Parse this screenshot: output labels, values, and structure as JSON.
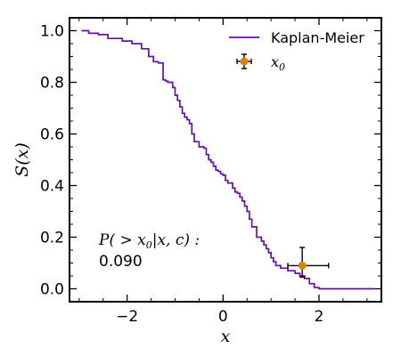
{
  "chart_data": {
    "type": "line",
    "xlabel": "x",
    "ylabel": "S(x)",
    "xlim": [
      -3.2,
      3.3
    ],
    "ylim": [
      -0.05,
      1.05
    ],
    "x_ticks": [
      -2,
      0,
      2
    ],
    "x_tick_labels": [
      "−2",
      "0",
      "2"
    ],
    "y_ticks": [
      0.0,
      0.2,
      0.4,
      0.6,
      0.8,
      1.0
    ],
    "y_tick_labels": [
      "0.0",
      "0.2",
      "0.4",
      "0.6",
      "0.8",
      "1.0"
    ],
    "grid": false,
    "legend_position": "top-right",
    "series": [
      {
        "name": "Kaplan-Meier",
        "kind": "step",
        "color": "#6a0dad",
        "x": [
          -2.95,
          -2.8,
          -2.6,
          -2.4,
          -2.1,
          -1.9,
          -1.7,
          -1.55,
          -1.45,
          -1.35,
          -1.25,
          -1.2,
          -1.15,
          -1.05,
          -1.0,
          -0.95,
          -0.9,
          -0.85,
          -0.8,
          -0.75,
          -0.7,
          -0.65,
          -0.6,
          -0.5,
          -0.4,
          -0.35,
          -0.3,
          -0.25,
          -0.2,
          -0.15,
          -0.1,
          -0.05,
          0.0,
          0.05,
          0.1,
          0.2,
          0.25,
          0.3,
          0.35,
          0.4,
          0.45,
          0.5,
          0.55,
          0.6,
          0.7,
          0.8,
          0.85,
          0.9,
          0.95,
          1.0,
          1.05,
          1.1,
          1.2,
          1.35,
          1.5,
          1.6,
          1.7,
          1.8,
          1.9,
          2.0,
          2.1,
          2.2,
          2.3,
          2.45,
          2.6,
          2.85,
          3.0
        ],
        "y": [
          1.0,
          0.99,
          0.985,
          0.97,
          0.96,
          0.95,
          0.93,
          0.9,
          0.88,
          0.875,
          0.81,
          0.805,
          0.8,
          0.78,
          0.75,
          0.73,
          0.705,
          0.68,
          0.665,
          0.655,
          0.64,
          0.6,
          0.57,
          0.55,
          0.545,
          0.52,
          0.5,
          0.49,
          0.475,
          0.46,
          0.455,
          0.445,
          0.44,
          0.42,
          0.41,
          0.39,
          0.375,
          0.37,
          0.355,
          0.34,
          0.32,
          0.3,
          0.27,
          0.24,
          0.2,
          0.185,
          0.17,
          0.155,
          0.14,
          0.12,
          0.105,
          0.09,
          0.08,
          0.07,
          0.06,
          0.05,
          0.04,
          0.02,
          0.005,
          0.0,
          0.0,
          0.0,
          0.0,
          0.0,
          0.0,
          0.0,
          0.0
        ]
      },
      {
        "name": "x0",
        "kind": "errorbar",
        "color": "#e08000",
        "x": 1.65,
        "y": 0.09,
        "xerr": [
          0.3,
          0.55
        ],
        "yerr": [
          0.045,
          0.07
        ]
      }
    ],
    "legend": [
      {
        "label": "Kaplan-Meier",
        "series": 0
      },
      {
        "label": "x",
        "sub": "0",
        "series": 1
      }
    ],
    "annotation": {
      "line1_prefix": "P( > x",
      "line1_sub": "0",
      "line1_suffix": "|x, c) :",
      "line2": "0.090"
    }
  }
}
